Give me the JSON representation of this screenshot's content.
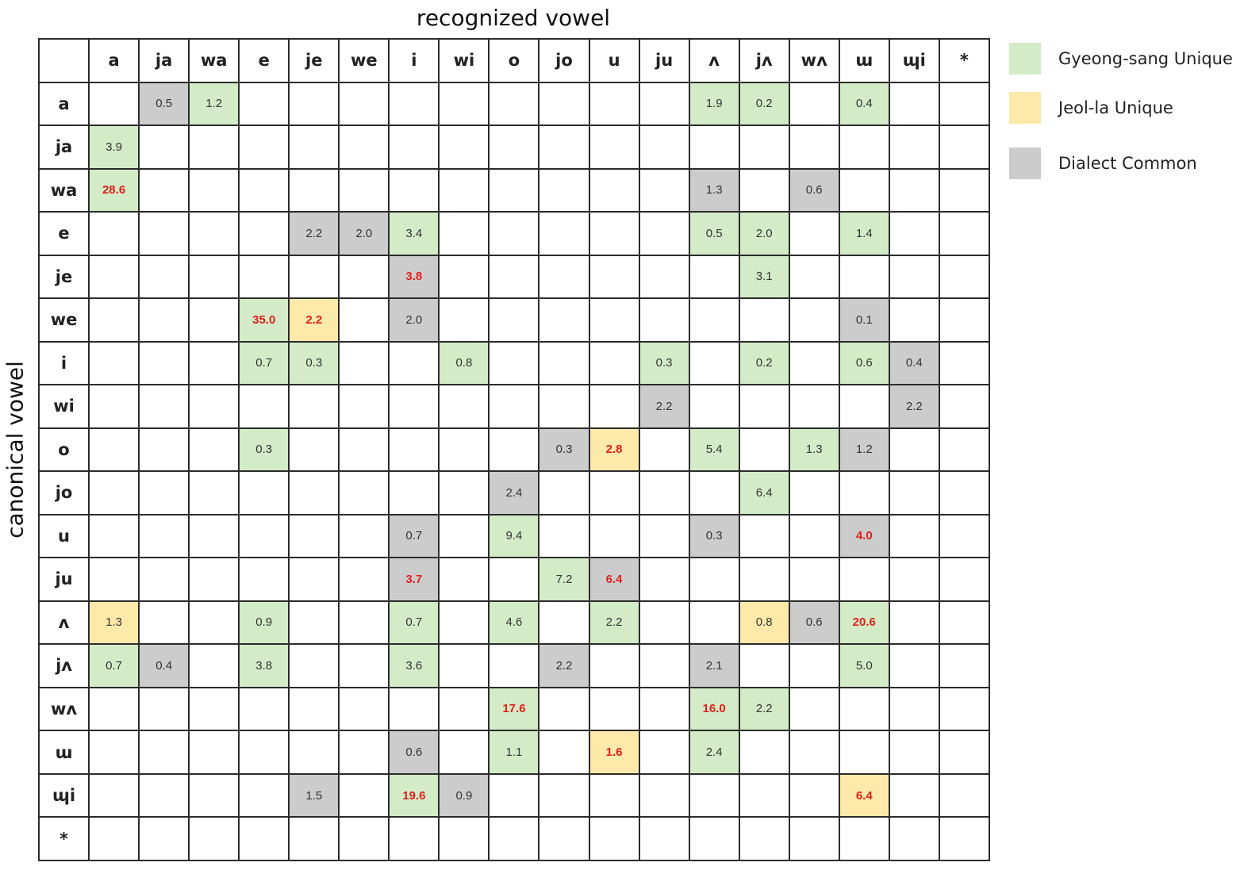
{
  "chart_data": {
    "type": "heatmap",
    "xlabel": "recognized vowel",
    "ylabel": "canonical vowel",
    "columns": [
      "a",
      "ja",
      "wa",
      "e",
      "je",
      "we",
      "i",
      "wi",
      "o",
      "jo",
      "u",
      "ju",
      "ʌ",
      "jʌ",
      "wʌ",
      "ɯ",
      "ɰi",
      "*"
    ],
    "rows": [
      "a",
      "ja",
      "wa",
      "e",
      "je",
      "we",
      "i",
      "wi",
      "o",
      "jo",
      "u",
      "ju",
      "ʌ",
      "jʌ",
      "wʌ",
      "ɯ",
      "ɰi",
      "*"
    ],
    "legend": [
      {
        "key": "G",
        "label": "Gyeong-sang Unique",
        "color": "#d3ecc7"
      },
      {
        "key": "J",
        "label": "Jeol-la Unique",
        "color": "#fde9a9"
      },
      {
        "key": "D",
        "label": "Dialect Common",
        "color": "#cccccc"
      }
    ],
    "highlight_text_color": "#e02020",
    "cells": [
      {
        "r": "a",
        "c": "ja",
        "v": "0.5",
        "cat": "D"
      },
      {
        "r": "a",
        "c": "wa",
        "v": "1.2",
        "cat": "G"
      },
      {
        "r": "a",
        "c": "ʌ",
        "v": "1.9",
        "cat": "G"
      },
      {
        "r": "a",
        "c": "jʌ",
        "v": "0.2",
        "cat": "G"
      },
      {
        "r": "a",
        "c": "ɯ",
        "v": "0.4",
        "cat": "G"
      },
      {
        "r": "ja",
        "c": "a",
        "v": "3.9",
        "cat": "G"
      },
      {
        "r": "wa",
        "c": "a",
        "v": "28.6",
        "cat": "G",
        "red": true
      },
      {
        "r": "wa",
        "c": "ʌ",
        "v": "1.3",
        "cat": "D"
      },
      {
        "r": "wa",
        "c": "wʌ",
        "v": "0.6",
        "cat": "D"
      },
      {
        "r": "e",
        "c": "je",
        "v": "2.2",
        "cat": "D"
      },
      {
        "r": "e",
        "c": "we",
        "v": "2.0",
        "cat": "D"
      },
      {
        "r": "e",
        "c": "i",
        "v": "3.4",
        "cat": "G"
      },
      {
        "r": "e",
        "c": "ʌ",
        "v": "0.5",
        "cat": "G"
      },
      {
        "r": "e",
        "c": "jʌ",
        "v": "2.0",
        "cat": "G"
      },
      {
        "r": "e",
        "c": "ɯ",
        "v": "1.4",
        "cat": "G"
      },
      {
        "r": "je",
        "c": "i",
        "v": "3.8",
        "cat": "D",
        "red": true
      },
      {
        "r": "je",
        "c": "jʌ",
        "v": "3.1",
        "cat": "G"
      },
      {
        "r": "we",
        "c": "e",
        "v": "35.0",
        "cat": "G",
        "red": true
      },
      {
        "r": "we",
        "c": "je",
        "v": "2.2",
        "cat": "J",
        "red": true
      },
      {
        "r": "we",
        "c": "i",
        "v": "2.0",
        "cat": "D"
      },
      {
        "r": "we",
        "c": "ɯ",
        "v": "0.1",
        "cat": "D"
      },
      {
        "r": "i",
        "c": "e",
        "v": "0.7",
        "cat": "G"
      },
      {
        "r": "i",
        "c": "je",
        "v": "0.3",
        "cat": "G"
      },
      {
        "r": "i",
        "c": "wi",
        "v": "0.8",
        "cat": "G"
      },
      {
        "r": "i",
        "c": "ju",
        "v": "0.3",
        "cat": "G"
      },
      {
        "r": "i",
        "c": "jʌ",
        "v": "0.2",
        "cat": "G"
      },
      {
        "r": "i",
        "c": "ɯ",
        "v": "0.6",
        "cat": "G"
      },
      {
        "r": "i",
        "c": "ɰi",
        "v": "0.4",
        "cat": "D"
      },
      {
        "r": "wi",
        "c": "ju",
        "v": "2.2",
        "cat": "D"
      },
      {
        "r": "wi",
        "c": "ɰi",
        "v": "2.2",
        "cat": "D"
      },
      {
        "r": "o",
        "c": "e",
        "v": "0.3",
        "cat": "G"
      },
      {
        "r": "o",
        "c": "jo",
        "v": "0.3",
        "cat": "D"
      },
      {
        "r": "o",
        "c": "u",
        "v": "2.8",
        "cat": "J",
        "red": true
      },
      {
        "r": "o",
        "c": "ʌ",
        "v": "5.4",
        "cat": "G"
      },
      {
        "r": "o",
        "c": "wʌ",
        "v": "1.3",
        "cat": "G"
      },
      {
        "r": "o",
        "c": "ɯ",
        "v": "1.2",
        "cat": "D"
      },
      {
        "r": "jo",
        "c": "o",
        "v": "2.4",
        "cat": "D"
      },
      {
        "r": "jo",
        "c": "jʌ",
        "v": "6.4",
        "cat": "G"
      },
      {
        "r": "u",
        "c": "i",
        "v": "0.7",
        "cat": "D"
      },
      {
        "r": "u",
        "c": "o",
        "v": "9.4",
        "cat": "G"
      },
      {
        "r": "u",
        "c": "ʌ",
        "v": "0.3",
        "cat": "D"
      },
      {
        "r": "u",
        "c": "ɯ",
        "v": "4.0",
        "cat": "D",
        "red": true
      },
      {
        "r": "ju",
        "c": "i",
        "v": "3.7",
        "cat": "D",
        "red": true
      },
      {
        "r": "ju",
        "c": "jo",
        "v": "7.2",
        "cat": "G"
      },
      {
        "r": "ju",
        "c": "u",
        "v": "6.4",
        "cat": "D",
        "red": true
      },
      {
        "r": "ʌ",
        "c": "a",
        "v": "1.3",
        "cat": "J"
      },
      {
        "r": "ʌ",
        "c": "e",
        "v": "0.9",
        "cat": "G"
      },
      {
        "r": "ʌ",
        "c": "i",
        "v": "0.7",
        "cat": "G"
      },
      {
        "r": "ʌ",
        "c": "o",
        "v": "4.6",
        "cat": "G"
      },
      {
        "r": "ʌ",
        "c": "u",
        "v": "2.2",
        "cat": "G"
      },
      {
        "r": "ʌ",
        "c": "jʌ",
        "v": "0.8",
        "cat": "J"
      },
      {
        "r": "ʌ",
        "c": "wʌ",
        "v": "0.6",
        "cat": "D"
      },
      {
        "r": "ʌ",
        "c": "ɯ",
        "v": "20.6",
        "cat": "G",
        "red": true
      },
      {
        "r": "jʌ",
        "c": "a",
        "v": "0.7",
        "cat": "G"
      },
      {
        "r": "jʌ",
        "c": "ja",
        "v": "0.4",
        "cat": "D"
      },
      {
        "r": "jʌ",
        "c": "e",
        "v": "3.8",
        "cat": "G"
      },
      {
        "r": "jʌ",
        "c": "i",
        "v": "3.6",
        "cat": "G"
      },
      {
        "r": "jʌ",
        "c": "jo",
        "v": "2.2",
        "cat": "D"
      },
      {
        "r": "jʌ",
        "c": "ʌ",
        "v": "2.1",
        "cat": "D"
      },
      {
        "r": "jʌ",
        "c": "ɯ",
        "v": "5.0",
        "cat": "G"
      },
      {
        "r": "wʌ",
        "c": "o",
        "v": "17.6",
        "cat": "G",
        "red": true
      },
      {
        "r": "wʌ",
        "c": "ʌ",
        "v": "16.0",
        "cat": "G",
        "red": true
      },
      {
        "r": "wʌ",
        "c": "jʌ",
        "v": "2.2",
        "cat": "G"
      },
      {
        "r": "ɯ",
        "c": "i",
        "v": "0.6",
        "cat": "D"
      },
      {
        "r": "ɯ",
        "c": "o",
        "v": "1.1",
        "cat": "G"
      },
      {
        "r": "ɯ",
        "c": "u",
        "v": "1.6",
        "cat": "J",
        "red": true
      },
      {
        "r": "ɯ",
        "c": "ʌ",
        "v": "2.4",
        "cat": "G"
      },
      {
        "r": "ɰi",
        "c": "je",
        "v": "1.5",
        "cat": "D"
      },
      {
        "r": "ɰi",
        "c": "i",
        "v": "19.6",
        "cat": "G",
        "red": true
      },
      {
        "r": "ɰi",
        "c": "wi",
        "v": "0.9",
        "cat": "D"
      },
      {
        "r": "ɰi",
        "c": "ɯ",
        "v": "6.4",
        "cat": "J",
        "red": true
      }
    ]
  }
}
